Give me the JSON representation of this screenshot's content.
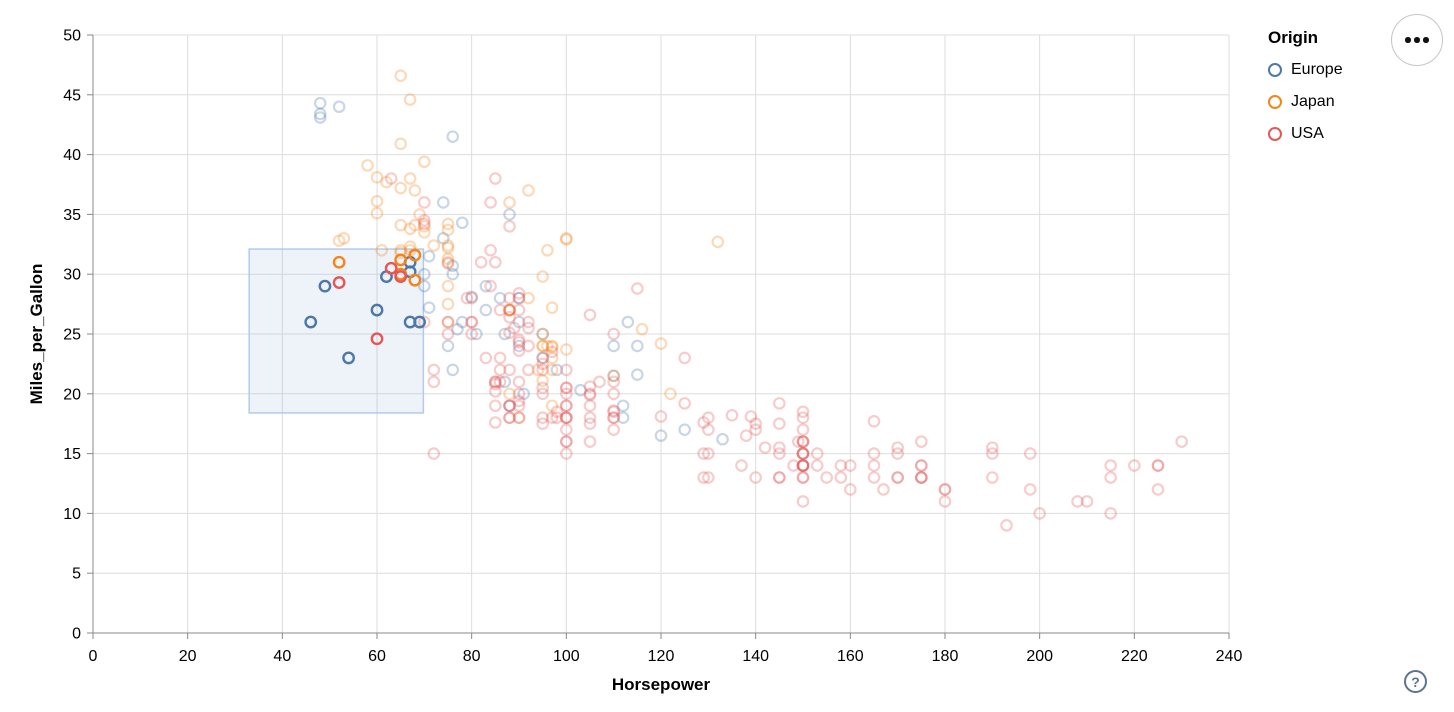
{
  "legend": {
    "title": "Origin",
    "items": [
      {
        "label": "Europe",
        "color": "#4c78a8"
      },
      {
        "label": "Japan",
        "color": "#f58518"
      },
      {
        "label": "USA",
        "color": "#e45756"
      }
    ]
  },
  "controls": {
    "menu_button": "options-menu",
    "help_label": "?"
  },
  "chart_data": {
    "type": "scatter",
    "x_title": "Horsepower",
    "y_title": "Miles_per_Gallon",
    "x_domain": [
      0,
      240
    ],
    "y_domain": [
      0,
      50
    ],
    "x_ticks": [
      0,
      20,
      40,
      60,
      80,
      100,
      120,
      140,
      160,
      180,
      200,
      220,
      240
    ],
    "y_ticks": [
      0,
      5,
      10,
      15,
      20,
      25,
      30,
      35,
      40,
      45,
      50
    ],
    "grid": true,
    "legend_position": "top-right",
    "mark": "open-circle",
    "unselected_opacity": 0.3,
    "grid_color": "#dddddd",
    "axis_color": "#888888",
    "brush": {
      "x": [
        33,
        69.8
      ],
      "y": [
        18.4,
        32.1
      ],
      "fill": "rgba(120,160,215,0.13)",
      "stroke": "#b3cbe8"
    },
    "series": [
      {
        "name": "Europe",
        "color": "#4c78a8",
        "selected": [
          [
            46,
            26
          ],
          [
            49,
            29
          ],
          [
            54,
            23
          ],
          [
            60,
            27
          ],
          [
            62,
            29.8
          ],
          [
            67,
            26
          ],
          [
            69,
            26
          ],
          [
            67,
            30.2
          ],
          [
            67,
            31
          ]
        ],
        "unselected": [
          [
            87,
            25
          ],
          [
            90,
            24
          ],
          [
            95,
            25
          ],
          [
            113,
            26
          ],
          [
            90,
            28
          ],
          [
            70,
            30
          ],
          [
            76,
            30
          ],
          [
            112,
            18
          ],
          [
            76,
            22
          ],
          [
            87,
            21
          ],
          [
            75,
            24
          ],
          [
            91,
            20
          ],
          [
            112,
            19
          ],
          [
            110,
            24
          ],
          [
            90,
            26
          ],
          [
            78,
            26
          ],
          [
            83,
            29
          ],
          [
            98,
            22
          ],
          [
            115,
            24
          ],
          [
            86,
            28
          ],
          [
            81,
            25
          ],
          [
            83,
            27
          ],
          [
            70,
            29
          ],
          [
            88,
            19
          ],
          [
            120,
            16.5
          ],
          [
            133,
            16.2
          ],
          [
            125,
            17
          ],
          [
            110,
            21.5
          ],
          [
            77,
            25.4
          ],
          [
            103,
            20.3
          ],
          [
            71,
            27.2
          ],
          [
            115,
            21.6
          ],
          [
            48,
            43.1
          ],
          [
            48,
            43.4
          ],
          [
            48,
            44.3
          ],
          [
            52,
            44
          ],
          [
            78,
            34.3
          ],
          [
            74,
            33
          ],
          [
            88,
            35
          ],
          [
            71,
            31.5
          ],
          [
            80,
            28.1
          ],
          [
            76,
            30.7
          ],
          [
            74,
            36
          ],
          [
            95,
            23
          ],
          [
            76,
            41.5
          ]
        ]
      },
      {
        "name": "Japan",
        "color": "#f58518",
        "selected": [
          [
            52,
            31
          ],
          [
            65,
            31.2
          ],
          [
            65,
            30
          ],
          [
            68,
            31.6
          ],
          [
            68,
            29.5
          ]
        ],
        "unselected": [
          [
            95,
            24
          ],
          [
            88,
            27
          ],
          [
            88,
            27
          ],
          [
            95,
            25
          ],
          [
            69,
            35
          ],
          [
            95,
            24
          ],
          [
            97,
            19
          ],
          [
            92,
            28
          ],
          [
            97,
            23
          ],
          [
            88,
            27
          ],
          [
            88,
            20
          ],
          [
            94,
            22
          ],
          [
            90,
            18
          ],
          [
            122,
            20
          ],
          [
            61,
            32
          ],
          [
            97,
            24
          ],
          [
            65,
            32
          ],
          [
            75,
            31
          ],
          [
            96,
            24
          ],
          [
            75,
            29
          ],
          [
            53,
            33
          ],
          [
            67,
            32
          ],
          [
            70,
            33.5
          ],
          [
            75,
            26
          ],
          [
            97,
            22
          ],
          [
            110,
            21.5
          ],
          [
            52,
            32.8
          ],
          [
            70,
            39.4
          ],
          [
            60,
            36.1
          ],
          [
            75,
            27.5
          ],
          [
            97,
            27.2
          ],
          [
            95,
            21.1
          ],
          [
            97,
            23.9
          ],
          [
            65,
            34.1
          ],
          [
            60,
            38.1
          ],
          [
            92,
            37
          ],
          [
            75,
            32.2
          ],
          [
            65,
            31.8
          ],
          [
            65,
            46.6
          ],
          [
            65,
            37.2
          ],
          [
            95,
            29.8
          ],
          [
            75,
            31.3
          ],
          [
            67,
            44.6
          ],
          [
            67,
            33.8
          ],
          [
            132,
            32.7
          ],
          [
            100,
            23.7
          ],
          [
            72,
            32.4
          ],
          [
            68,
            34.1
          ],
          [
            58,
            39.1
          ],
          [
            60,
            35.1
          ],
          [
            67,
            32.3
          ],
          [
            62,
            37.7
          ],
          [
            68,
            37
          ],
          [
            75,
            33.7
          ],
          [
            75,
            32.4
          ],
          [
            100,
            32.9
          ],
          [
            75,
            34.2
          ],
          [
            116,
            25.4
          ],
          [
            120,
            24.2
          ],
          [
            88,
            36
          ],
          [
            70,
            34
          ],
          [
            67,
            38
          ],
          [
            96,
            32
          ],
          [
            100,
            33
          ],
          [
            65,
            40.9
          ]
        ]
      },
      {
        "name": "USA",
        "color": "#e45756",
        "selected": [
          [
            52,
            29.3
          ],
          [
            63,
            30.5
          ],
          [
            65,
            29.8
          ],
          [
            60,
            24.6
          ]
        ],
        "unselected": [
          [
            130,
            18
          ],
          [
            165,
            15
          ],
          [
            150,
            18
          ],
          [
            150,
            16
          ],
          [
            140,
            17
          ],
          [
            198,
            15
          ],
          [
            220,
            14
          ],
          [
            215,
            14
          ],
          [
            225,
            14
          ],
          [
            190,
            15
          ],
          [
            170,
            15
          ],
          [
            160,
            14
          ],
          [
            150,
            15
          ],
          [
            225,
            14
          ],
          [
            95,
            22
          ],
          [
            97,
            18
          ],
          [
            85,
            21
          ],
          [
            90,
            21
          ],
          [
            215,
            10
          ],
          [
            200,
            10
          ],
          [
            210,
            11
          ],
          [
            193,
            9
          ],
          [
            90,
            28
          ],
          [
            105,
            16
          ],
          [
            100,
            17
          ],
          [
            88,
            19
          ],
          [
            100,
            18
          ],
          [
            165,
            14
          ],
          [
            175,
            14
          ],
          [
            153,
            14
          ],
          [
            150,
            14
          ],
          [
            180,
            12
          ],
          [
            170,
            13
          ],
          [
            175,
            13
          ],
          [
            110,
            18
          ],
          [
            72,
            22
          ],
          [
            100,
            19
          ],
          [
            88,
            18
          ],
          [
            86,
            23
          ],
          [
            70,
            26
          ],
          [
            80,
            25
          ],
          [
            90,
            20
          ],
          [
            86,
            21
          ],
          [
            165,
            13
          ],
          [
            175,
            14
          ],
          [
            153,
            15
          ],
          [
            158,
            14
          ],
          [
            150,
            17
          ],
          [
            208,
            11
          ],
          [
            155,
            13
          ],
          [
            160,
            12
          ],
          [
            190,
            13
          ],
          [
            150,
            15
          ],
          [
            130,
            13
          ],
          [
            140,
            13
          ],
          [
            150,
            14
          ],
          [
            86,
            22
          ],
          [
            80,
            28
          ],
          [
            175,
            13
          ],
          [
            150,
            14
          ],
          [
            145,
            13
          ],
          [
            137,
            14
          ],
          [
            150,
            15
          ],
          [
            198,
            12
          ],
          [
            150,
            13
          ],
          [
            158,
            13
          ],
          [
            150,
            14
          ],
          [
            215,
            13
          ],
          [
            225,
            12
          ],
          [
            175,
            13
          ],
          [
            105,
            18
          ],
          [
            100,
            16
          ],
          [
            100,
            18
          ],
          [
            88,
            18
          ],
          [
            95,
            23
          ],
          [
            150,
            11
          ],
          [
            167,
            12
          ],
          [
            170,
            13
          ],
          [
            180,
            12
          ],
          [
            100,
            18
          ],
          [
            72,
            21
          ],
          [
            85,
            19
          ],
          [
            107,
            21
          ],
          [
            145,
            15
          ],
          [
            230,
            16
          ],
          [
            150,
            15
          ],
          [
            180,
            11
          ],
          [
            95,
            20
          ],
          [
            85,
            21
          ],
          [
            88,
            19
          ],
          [
            100,
            15
          ],
          [
            150,
            16
          ],
          [
            100,
            16
          ],
          [
            105,
            19
          ],
          [
            150,
            13
          ],
          [
            150,
            14
          ],
          [
            145,
            13
          ],
          [
            75,
            26
          ],
          [
            75,
            25
          ],
          [
            80,
            26
          ],
          [
            80,
            26
          ],
          [
            83,
            23
          ],
          [
            100,
            20
          ],
          [
            90,
            19
          ],
          [
            110,
            20
          ],
          [
            95,
            18
          ],
          [
            110,
            21
          ],
          [
            148,
            14
          ],
          [
            150,
            16
          ],
          [
            110,
            18
          ],
          [
            129,
            15
          ],
          [
            129,
            13
          ],
          [
            72,
            15
          ],
          [
            90,
            18
          ],
          [
            100,
            22
          ],
          [
            98,
            18
          ],
          [
            95,
            22.5
          ],
          [
            105,
            20
          ],
          [
            97,
            23.5
          ],
          [
            100,
            20.5
          ],
          [
            90,
            24.5
          ],
          [
            92,
            25.5
          ],
          [
            145,
            17.5
          ],
          [
            110,
            17
          ],
          [
            145,
            15.5
          ],
          [
            130,
            15
          ],
          [
            105,
            17.5
          ],
          [
            100,
            19
          ],
          [
            98,
            18.5
          ],
          [
            175,
            16
          ],
          [
            170,
            15.5
          ],
          [
            190,
            15.5
          ],
          [
            149,
            16
          ],
          [
            110,
            18.5
          ],
          [
            95,
            17.5
          ],
          [
            89,
            25.5
          ],
          [
            165,
            17.7
          ],
          [
            139,
            18.1
          ],
          [
            140,
            17.5
          ],
          [
            95,
            20.5
          ],
          [
            85,
            20.2
          ],
          [
            88,
            25.1
          ],
          [
            100,
            20.5
          ],
          [
            90,
            19.4
          ],
          [
            105,
            20.6
          ],
          [
            85,
            20.8
          ],
          [
            110,
            18.6
          ],
          [
            120,
            18.1
          ],
          [
            145,
            19.2
          ],
          [
            125,
            23
          ],
          [
            129,
            17.6
          ],
          [
            138,
            16.5
          ],
          [
            135,
            18.2
          ],
          [
            130,
            17
          ],
          [
            142,
            15.5
          ],
          [
            125,
            19.2
          ],
          [
            150,
            18.5
          ],
          [
            105,
            19.9
          ],
          [
            85,
            17.6
          ],
          [
            115,
            28.8
          ],
          [
            88,
            26.4
          ],
          [
            90,
            24.3
          ],
          [
            75,
            30.9
          ],
          [
            70,
            34.2
          ],
          [
            70,
            34.5
          ],
          [
            90,
            28.4
          ],
          [
            90,
            23.6
          ],
          [
            88,
            28
          ],
          [
            88,
            27
          ],
          [
            88,
            34
          ],
          [
            85,
            31
          ],
          [
            84,
            29
          ],
          [
            90,
            27
          ],
          [
            92,
            24
          ],
          [
            84,
            36
          ],
          [
            63,
            38
          ],
          [
            70,
            36
          ],
          [
            110,
            25
          ],
          [
            85,
            38
          ],
          [
            92,
            26
          ],
          [
            88,
            22
          ],
          [
            86,
            27
          ],
          [
            84,
            32
          ],
          [
            79,
            28
          ],
          [
            82,
            31
          ],
          [
            92,
            22
          ],
          [
            105,
            26.6
          ]
        ]
      }
    ]
  }
}
